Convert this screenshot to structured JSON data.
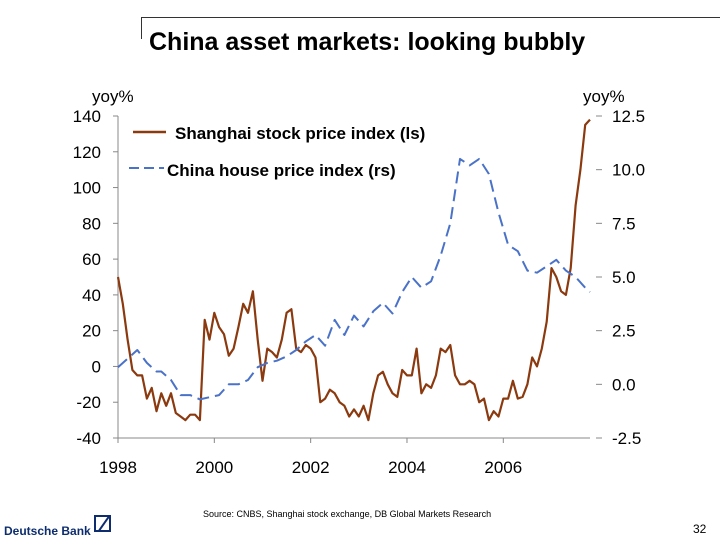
{
  "title": "China asset markets: looking bubbly",
  "source": "Source: CNBS, Shanghai stock exchange, DB Global Markets Research",
  "brand": {
    "name": "Deutsche Bank",
    "color": "#0d2d6e",
    "icon": "deutsche-bank-slash-logo-icon"
  },
  "page_number": "32",
  "chart_data": {
    "type": "line",
    "title": "China asset markets: looking bubbly",
    "y_left_label": "yoy%",
    "y_right_label": "yoy%",
    "y_left_ticks": [
      "140",
      "120",
      "100",
      "80",
      "60",
      "40",
      "20",
      "0",
      "-20",
      "-40"
    ],
    "y_right_ticks": [
      "12.5",
      "10.0",
      "7.5",
      "5.0",
      "2.5",
      "0.0",
      "-2.5"
    ],
    "x_ticks": [
      "1998",
      "2000",
      "2002",
      "2004",
      "2006"
    ],
    "ylim_left": [
      -40,
      140
    ],
    "ylim_right": [
      -2.5,
      12.5
    ],
    "xlim": [
      1998,
      2007.8
    ],
    "series": [
      {
        "name": "Shanghai stock price index (ls)",
        "axis": "left",
        "color": "#8b3a0f",
        "style": "solid",
        "points": [
          [
            1998.0,
            50
          ],
          [
            1998.1,
            35
          ],
          [
            1998.2,
            15
          ],
          [
            1998.3,
            -2
          ],
          [
            1998.4,
            -5
          ],
          [
            1998.5,
            -5
          ],
          [
            1998.6,
            -18
          ],
          [
            1998.7,
            -12
          ],
          [
            1998.8,
            -25
          ],
          [
            1998.9,
            -15
          ],
          [
            1999.0,
            -22
          ],
          [
            1999.1,
            -15
          ],
          [
            1999.2,
            -26
          ],
          [
            1999.3,
            -28
          ],
          [
            1999.4,
            -30
          ],
          [
            1999.5,
            -27
          ],
          [
            1999.6,
            -27
          ],
          [
            1999.7,
            -30
          ],
          [
            1999.8,
            26
          ],
          [
            1999.9,
            15
          ],
          [
            2000.0,
            30
          ],
          [
            2000.1,
            22
          ],
          [
            2000.2,
            18
          ],
          [
            2000.3,
            6
          ],
          [
            2000.4,
            10
          ],
          [
            2000.5,
            22
          ],
          [
            2000.6,
            35
          ],
          [
            2000.7,
            30
          ],
          [
            2000.8,
            42
          ],
          [
            2000.9,
            15
          ],
          [
            2001.0,
            -8
          ],
          [
            2001.1,
            10
          ],
          [
            2001.2,
            8
          ],
          [
            2001.3,
            5
          ],
          [
            2001.4,
            15
          ],
          [
            2001.5,
            30
          ],
          [
            2001.6,
            32
          ],
          [
            2001.7,
            10
          ],
          [
            2001.8,
            8
          ],
          [
            2001.9,
            12
          ],
          [
            2002.0,
            10
          ],
          [
            2002.1,
            5
          ],
          [
            2002.2,
            -20
          ],
          [
            2002.3,
            -18
          ],
          [
            2002.4,
            -13
          ],
          [
            2002.5,
            -15
          ],
          [
            2002.6,
            -20
          ],
          [
            2002.7,
            -22
          ],
          [
            2002.8,
            -28
          ],
          [
            2002.9,
            -24
          ],
          [
            2003.0,
            -28
          ],
          [
            2003.1,
            -22
          ],
          [
            2003.2,
            -30
          ],
          [
            2003.3,
            -15
          ],
          [
            2003.4,
            -5
          ],
          [
            2003.5,
            -3
          ],
          [
            2003.6,
            -10
          ],
          [
            2003.7,
            -15
          ],
          [
            2003.8,
            -17
          ],
          [
            2003.9,
            -2
          ],
          [
            2004.0,
            -5
          ],
          [
            2004.1,
            -5
          ],
          [
            2004.2,
            10
          ],
          [
            2004.3,
            -15
          ],
          [
            2004.4,
            -10
          ],
          [
            2004.5,
            -12
          ],
          [
            2004.6,
            -5
          ],
          [
            2004.7,
            10
          ],
          [
            2004.8,
            8
          ],
          [
            2004.9,
            12
          ],
          [
            2005.0,
            -5
          ],
          [
            2005.1,
            -10
          ],
          [
            2005.2,
            -10
          ],
          [
            2005.3,
            -8
          ],
          [
            2005.4,
            -10
          ],
          [
            2005.5,
            -20
          ],
          [
            2005.6,
            -18
          ],
          [
            2005.7,
            -30
          ],
          [
            2005.8,
            -25
          ],
          [
            2005.9,
            -28
          ],
          [
            2006.0,
            -18
          ],
          [
            2006.1,
            -18
          ],
          [
            2006.2,
            -8
          ],
          [
            2006.3,
            -18
          ],
          [
            2006.4,
            -17
          ],
          [
            2006.5,
            -10
          ],
          [
            2006.6,
            5
          ],
          [
            2006.7,
            0
          ],
          [
            2006.8,
            10
          ],
          [
            2006.9,
            25
          ],
          [
            2007.0,
            55
          ],
          [
            2007.1,
            50
          ],
          [
            2007.2,
            42
          ],
          [
            2007.3,
            40
          ],
          [
            2007.4,
            55
          ],
          [
            2007.5,
            90
          ],
          [
            2007.6,
            110
          ],
          [
            2007.7,
            135
          ],
          [
            2007.8,
            138
          ]
        ]
      },
      {
        "name": "China house price index (rs)",
        "axis": "right",
        "color": "#4a72c8",
        "style": "dashed",
        "points": [
          [
            1998.0,
            0.8
          ],
          [
            1998.2,
            1.2
          ],
          [
            1998.4,
            1.6
          ],
          [
            1998.6,
            1.0
          ],
          [
            1998.8,
            0.6
          ],
          [
            1998.9,
            0.6
          ],
          [
            1999.1,
            0.2
          ],
          [
            1999.3,
            -0.5
          ],
          [
            1999.5,
            -0.5
          ],
          [
            1999.7,
            -0.7
          ],
          [
            1999.9,
            -0.6
          ],
          [
            2000.1,
            -0.5
          ],
          [
            2000.3,
            0.0
          ],
          [
            2000.5,
            0.0
          ],
          [
            2000.7,
            0.2
          ],
          [
            2000.9,
            0.8
          ],
          [
            2001.1,
            1.0
          ],
          [
            2001.3,
            1.1
          ],
          [
            2001.5,
            1.3
          ],
          [
            2001.7,
            1.6
          ],
          [
            2001.9,
            2.0
          ],
          [
            2002.1,
            2.3
          ],
          [
            2002.3,
            1.8
          ],
          [
            2002.5,
            3.0
          ],
          [
            2002.7,
            2.3
          ],
          [
            2002.9,
            3.2
          ],
          [
            2003.1,
            2.7
          ],
          [
            2003.3,
            3.4
          ],
          [
            2003.5,
            3.8
          ],
          [
            2003.7,
            3.3
          ],
          [
            2003.9,
            4.3
          ],
          [
            2004.1,
            5.0
          ],
          [
            2004.3,
            4.5
          ],
          [
            2004.5,
            4.8
          ],
          [
            2004.7,
            6.0
          ],
          [
            2004.9,
            7.5
          ],
          [
            2005.1,
            10.5
          ],
          [
            2005.3,
            10.2
          ],
          [
            2005.5,
            10.5
          ],
          [
            2005.7,
            9.8
          ],
          [
            2005.9,
            8.0
          ],
          [
            2006.1,
            6.5
          ],
          [
            2006.3,
            6.2
          ],
          [
            2006.5,
            5.3
          ],
          [
            2006.7,
            5.2
          ],
          [
            2006.9,
            5.5
          ],
          [
            2007.1,
            5.8
          ],
          [
            2007.3,
            5.3
          ],
          [
            2007.5,
            5.0
          ],
          [
            2007.7,
            4.5
          ],
          [
            2007.8,
            4.3
          ]
        ]
      }
    ],
    "legend": "top-left"
  }
}
